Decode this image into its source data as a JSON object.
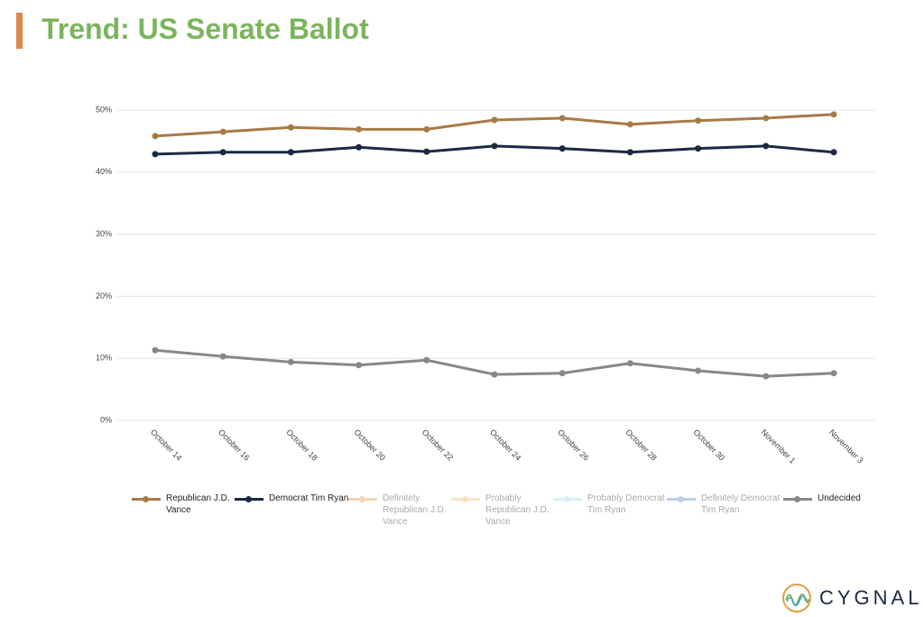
{
  "chart_data": {
    "type": "line",
    "title": "Trend: US Senate Ballot",
    "categories": [
      "October 14",
      "October 16",
      "October 18",
      "October 20",
      "October 22",
      "October 24",
      "October 26",
      "October 28",
      "October 30",
      "November 1",
      "November 3"
    ],
    "series": [
      {
        "name": "Republican J.D. Vance",
        "color": "#a87a45",
        "visible": true,
        "values": [
          45.8,
          46.5,
          47.2,
          46.9,
          46.9,
          48.4,
          48.7,
          47.7,
          48.3,
          48.7,
          49.3
        ]
      },
      {
        "name": "Democrat Tim Ryan",
        "color": "#1b2a44",
        "visible": true,
        "values": [
          42.9,
          43.2,
          43.2,
          44.0,
          43.3,
          44.2,
          43.8,
          43.2,
          43.8,
          44.2,
          43.2
        ]
      },
      {
        "name": "Definitely Republican J.D. Vance",
        "color": "#f0c8a0",
        "visible": false,
        "values": [
          null,
          null,
          null,
          null,
          null,
          null,
          null,
          null,
          null,
          null,
          null
        ]
      },
      {
        "name": "Probably Republican J.D. Vance",
        "color": "#f3dcb0",
        "visible": false,
        "values": [
          null,
          null,
          null,
          null,
          null,
          null,
          null,
          null,
          null,
          null,
          null
        ]
      },
      {
        "name": "Probably Democrat Tim Ryan",
        "color": "#cde7f5",
        "visible": false,
        "values": [
          null,
          null,
          null,
          null,
          null,
          null,
          null,
          null,
          null,
          null,
          null
        ]
      },
      {
        "name": "Definitely Democrat Tim Ryan",
        "color": "#a6bfe0",
        "visible": false,
        "values": [
          null,
          null,
          null,
          null,
          null,
          null,
          null,
          null,
          null,
          null,
          null
        ]
      },
      {
        "name": "Undecided",
        "color": "#888888",
        "visible": true,
        "values": [
          11.3,
          10.3,
          9.4,
          8.9,
          9.7,
          7.4,
          7.6,
          9.2,
          8.0,
          7.1,
          7.6
        ]
      }
    ],
    "ylim": [
      0,
      50
    ],
    "yticks": [
      {
        "value": 0,
        "label": "0%"
      },
      {
        "value": 10,
        "label": "10%"
      },
      {
        "value": 20,
        "label": "20%"
      },
      {
        "value": 30,
        "label": "30%"
      },
      {
        "value": 40,
        "label": "40%"
      },
      {
        "value": 50,
        "label": "50%"
      }
    ],
    "grid": true,
    "legend": "bottom"
  },
  "logo": "CYGNAL"
}
